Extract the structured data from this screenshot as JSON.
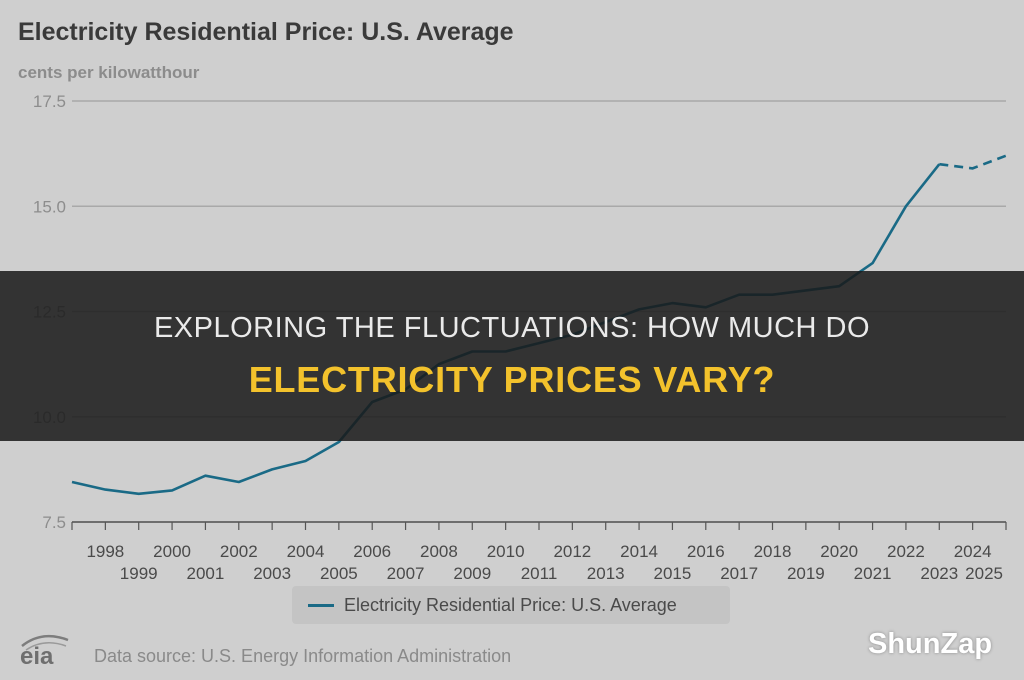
{
  "chart_data": {
    "type": "line",
    "title": "Electricity Residential Price: U.S. Average",
    "ylabel": "cents per kilowatthour",
    "xlabel": "",
    "ylim": [
      7.5,
      17.5
    ],
    "y_ticks": [
      "7.5",
      "10.0",
      "12.5",
      "15.0",
      "17.5"
    ],
    "xlim": [
      1997,
      2025
    ],
    "x_ticks_upper": [
      "1998",
      "2000",
      "2002",
      "2004",
      "2006",
      "2008",
      "2010",
      "2012",
      "2014",
      "2016",
      "2018",
      "2020",
      "2022",
      "2024"
    ],
    "x_ticks_lower": [
      "1999",
      "2001",
      "2003",
      "2005",
      "2007",
      "2009",
      "2011",
      "2013",
      "2015",
      "2017",
      "2019",
      "2021",
      "2023",
      "2025"
    ],
    "grid": "horizontal",
    "series": [
      {
        "name": "Electricity Residential Price: U.S. Average",
        "color": "#1a6a86",
        "historical": {
          "x": [
            1997,
            1998,
            1999,
            2000,
            2001,
            2002,
            2003,
            2004,
            2005,
            2006,
            2007,
            2008,
            2009,
            2010,
            2011,
            2012,
            2013,
            2014,
            2015,
            2016,
            2017,
            2018,
            2019,
            2020,
            2021,
            2022,
            2023
          ],
          "y": [
            8.45,
            8.27,
            8.17,
            8.25,
            8.6,
            8.45,
            8.75,
            8.95,
            9.4,
            10.35,
            10.65,
            11.25,
            11.55,
            11.55,
            11.75,
            11.95,
            12.25,
            12.55,
            12.7,
            12.6,
            12.9,
            12.9,
            13.0,
            13.1,
            13.65,
            15.0,
            16.0
          ]
        },
        "forecast": {
          "x": [
            2023,
            2024,
            2025
          ],
          "y": [
            16.0,
            15.9,
            16.2
          ]
        }
      }
    ],
    "legend": "bottom-center"
  },
  "footer": {
    "source": "Data source: U.S. Energy Information Administration",
    "logo_text": "eia"
  },
  "overlay": {
    "line1": "EXPLORING THE FLUCTUATIONS: HOW MUCH DO",
    "line2": "ELECTRICITY PRICES VARY?",
    "brand": "ShunZap",
    "headline_color": "#f3c22c"
  }
}
